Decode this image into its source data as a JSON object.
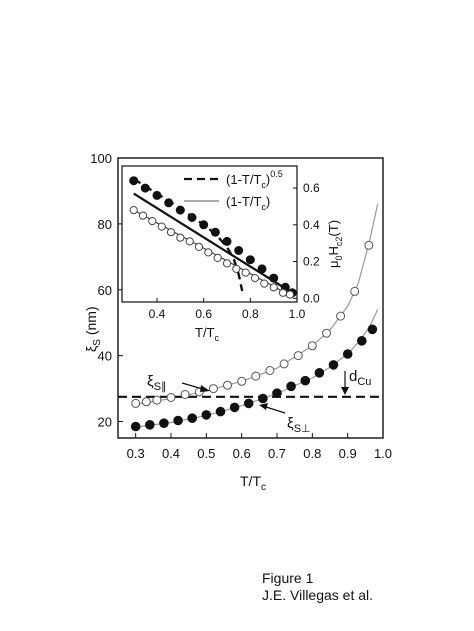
{
  "chart_data": [
    {
      "type": "scatter",
      "xlabel_main": "T/T",
      "xlabel_sub": "c",
      "ylabel_main": "ξ",
      "ylabel_sub": "S",
      "ylabel_unit": "(nm)",
      "xlim": [
        0.25,
        1.0
      ],
      "ylim": [
        15,
        100
      ],
      "xticks": [
        "0.3",
        "0.4",
        "0.5",
        "0.6",
        "0.7",
        "0.8",
        "0.9",
        "1.0"
      ],
      "yticks": [
        "20",
        "40",
        "60",
        "80",
        "100"
      ],
      "grid": false,
      "series": [
        {
          "name": "ξS∥",
          "marker": "open-circle",
          "x": [
            0.3,
            0.33,
            0.36,
            0.4,
            0.44,
            0.48,
            0.52,
            0.56,
            0.6,
            0.64,
            0.68,
            0.72,
            0.76,
            0.8,
            0.84,
            0.88,
            0.92,
            0.96
          ],
          "y": [
            25.5,
            26.0,
            26.5,
            27.3,
            28.2,
            29.0,
            30.0,
            31.0,
            32.2,
            33.8,
            35.5,
            37.5,
            40.0,
            43.0,
            46.8,
            52.0,
            59.5,
            73.5
          ]
        },
        {
          "name": "ξS⊥",
          "marker": "filled-circle",
          "x": [
            0.3,
            0.34,
            0.38,
            0.42,
            0.46,
            0.5,
            0.54,
            0.58,
            0.62,
            0.66,
            0.7,
            0.74,
            0.78,
            0.82,
            0.86,
            0.9,
            0.94,
            0.97
          ],
          "y": [
            18.5,
            19.0,
            19.5,
            20.3,
            21.0,
            22.0,
            23.0,
            24.3,
            25.5,
            27.0,
            28.6,
            30.7,
            32.4,
            34.8,
            37.2,
            40.5,
            44.5,
            48.0
          ]
        }
      ],
      "fit_curves": {
        "color": "#999999",
        "parallel": {
          "x": [
            0.3,
            0.4,
            0.5,
            0.6,
            0.7,
            0.8,
            0.85,
            0.9,
            0.93,
            0.96,
            0.985
          ],
          "y": [
            25.2,
            27.0,
            29.3,
            32.2,
            36.2,
            43.0,
            47.8,
            55.0,
            62.0,
            74.0,
            86.0
          ]
        },
        "perpendicular": {
          "x": [
            0.3,
            0.4,
            0.5,
            0.6,
            0.7,
            0.8,
            0.85,
            0.9,
            0.93,
            0.96,
            0.985
          ],
          "y": [
            18.3,
            19.7,
            21.8,
            24.8,
            28.5,
            33.2,
            36.5,
            40.6,
            44.0,
            48.4,
            54.0
          ]
        }
      },
      "reference_line": {
        "label_main": "d",
        "label_sub": "Cu",
        "y": 27.5,
        "style": "dashed"
      },
      "annotations": [
        {
          "label_main": "ξ",
          "label_sub": "S∥"
        },
        {
          "label_main": "ξ",
          "label_sub": "S⊥"
        }
      ]
    },
    {
      "type": "scatter",
      "inset": true,
      "xlabel_main": "T/T",
      "xlabel_sub": "c",
      "ylabel_right": "μ0Hc2(T)",
      "xlim": [
        0.25,
        1.0
      ],
      "ylim": [
        -0.02,
        0.72
      ],
      "xticks": [
        "0.4",
        "0.6",
        "0.8",
        "1.0"
      ],
      "yticks": [
        "0.0",
        "0.2",
        "0.4",
        "0.6"
      ],
      "legend": {
        "position": "top-right",
        "entries": [
          {
            "text": "(1-T/T",
            "sub": "c",
            "tail": ")",
            "sup": "0.5",
            "style": "dashed"
          },
          {
            "text": "(1-T/T",
            "sub": "c",
            "tail": ")",
            "sup": "",
            "style": "solid"
          }
        ]
      },
      "series": [
        {
          "name": "Hc2 filled",
          "marker": "filled-circle",
          "x": [
            0.3,
            0.35,
            0.4,
            0.45,
            0.5,
            0.55,
            0.6,
            0.65,
            0.7,
            0.75,
            0.8,
            0.85,
            0.9,
            0.95,
            0.98
          ],
          "y": [
            0.64,
            0.6,
            0.56,
            0.52,
            0.48,
            0.44,
            0.4,
            0.36,
            0.31,
            0.26,
            0.21,
            0.16,
            0.11,
            0.06,
            0.03
          ]
        },
        {
          "name": "Hc2 open",
          "marker": "open-circle",
          "x": [
            0.3,
            0.34,
            0.38,
            0.42,
            0.46,
            0.5,
            0.54,
            0.58,
            0.62,
            0.66,
            0.7,
            0.74,
            0.78,
            0.82,
            0.86,
            0.9,
            0.94,
            0.97
          ],
          "y": [
            0.48,
            0.45,
            0.42,
            0.39,
            0.36,
            0.33,
            0.31,
            0.28,
            0.25,
            0.22,
            0.19,
            0.16,
            0.14,
            0.11,
            0.08,
            0.06,
            0.03,
            0.02
          ]
        }
      ],
      "fit_lines": [
        {
          "style": "dashed",
          "x": [
            0.3,
            0.4,
            0.5,
            0.6,
            0.65,
            0.7,
            0.73,
            0.75,
            0.765
          ],
          "y": [
            0.65,
            0.57,
            0.49,
            0.4,
            0.35,
            0.28,
            0.21,
            0.13,
            0.04
          ]
        },
        {
          "style": "solid-thick",
          "x": [
            0.3,
            0.98
          ],
          "y": [
            0.57,
            0.03
          ]
        },
        {
          "style": "solid",
          "x": [
            0.3,
            0.98
          ],
          "y": [
            0.48,
            0.01
          ]
        }
      ]
    }
  ],
  "caption": {
    "line1": "Figure 1",
    "line2": "J.E. Villegas et al."
  }
}
